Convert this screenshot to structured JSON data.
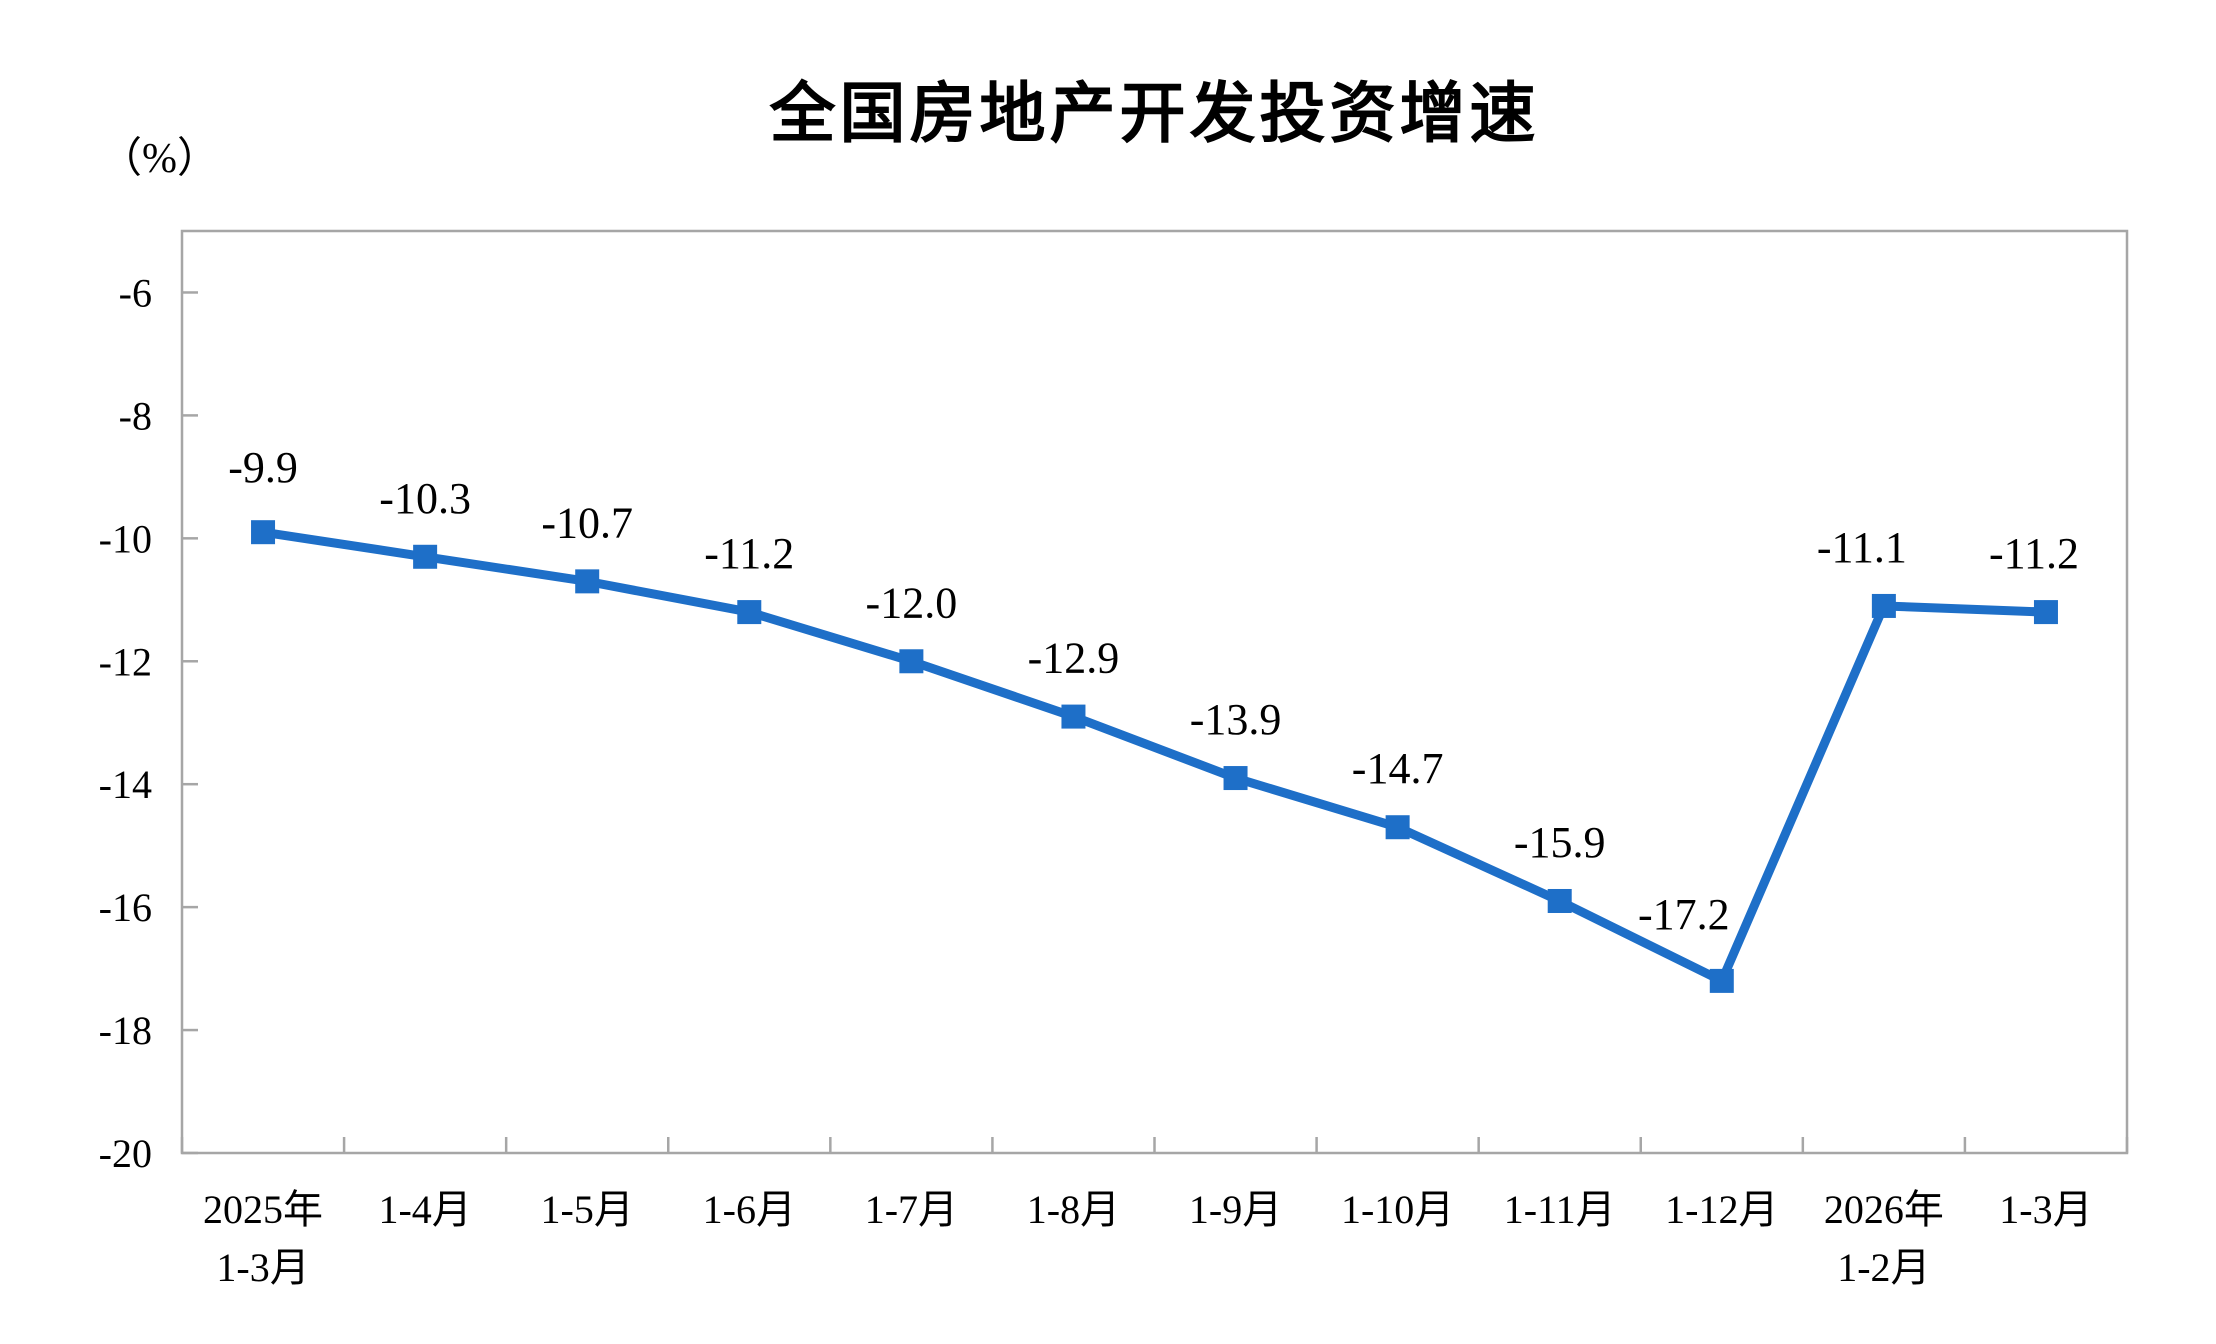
{
  "chart_data": {
    "type": "line",
    "title": "全国房地产开发投资增速",
    "y_unit": "（%）",
    "xlabel": "",
    "ylabel": "",
    "categories": [
      [
        "2025年",
        "1-3月"
      ],
      [
        "1-4月"
      ],
      [
        "1-5月"
      ],
      [
        "1-6月"
      ],
      [
        "1-7月"
      ],
      [
        "1-8月"
      ],
      [
        "1-9月"
      ],
      [
        "1-10月"
      ],
      [
        "1-11月"
      ],
      [
        "1-12月"
      ],
      [
        "2026年",
        "1-2月"
      ],
      [
        "1-3月"
      ]
    ],
    "series": [
      {
        "name": "全国房地产开发投资增速",
        "values": [
          -9.9,
          -10.3,
          -10.7,
          -11.2,
          -12.0,
          -12.9,
          -13.9,
          -14.7,
          -15.9,
          -17.2,
          -11.1,
          -11.2
        ],
        "point_labels": [
          "-9.9",
          "-10.3",
          "-10.7",
          "-11.2",
          "-12.0",
          "-12.9",
          "-13.9",
          "-14.7",
          "-15.9",
          "-17.2",
          "-11.1",
          "-11.2"
        ]
      }
    ],
    "ylim": [
      -20,
      -5
    ],
    "yticks": [
      -6,
      -8,
      -10,
      -12,
      -14,
      -16,
      -18,
      -20
    ],
    "ytick_labels": [
      "-6",
      "-8",
      "-10",
      "-12",
      "-14",
      "-16",
      "-18",
      "-20"
    ],
    "grid": false,
    "legend_position": "none",
    "marker": "square",
    "line_color": "#1E6FC8",
    "axis_color": "#A6A6A6",
    "text_color": "#000000"
  }
}
